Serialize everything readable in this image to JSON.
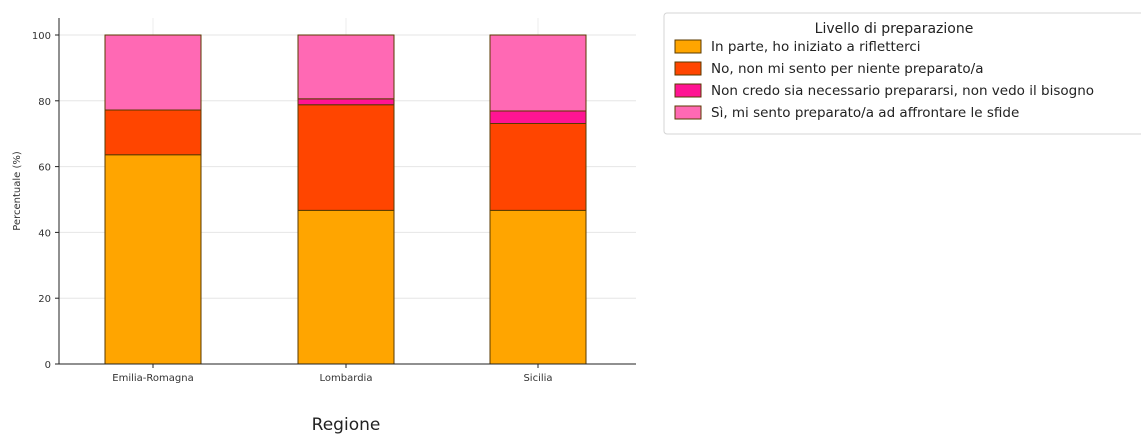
{
  "chart_data": {
    "type": "bar",
    "stacked": true,
    "categories": [
      "Emilia-Romagna",
      "Lombardia",
      "Sicilia"
    ],
    "series": [
      {
        "name": "In parte, ho iniziato a rifletterci",
        "color": "#FFA500",
        "values": [
          63.6,
          46.7,
          46.7
        ]
      },
      {
        "name": "No, non mi sento per niente preparato/a",
        "color": "#FF4500",
        "values": [
          13.6,
          32.1,
          26.4
        ]
      },
      {
        "name": "Non credo sia necessario prepararsi, non vedo il bisogno",
        "color": "#FF1493",
        "values": [
          0,
          1.8,
          3.8
        ]
      },
      {
        "name": "Sì, mi sento preparato/a ad affrontare le sfide",
        "color": "#FF69B4",
        "values": [
          22.8,
          19.4,
          23.1
        ]
      }
    ],
    "xlabel": "Regione",
    "ylabel": "Percentuale (%)",
    "ylim": [
      0,
      100
    ],
    "yticks": [
      0,
      20,
      40,
      60,
      80,
      100
    ],
    "grid": true,
    "legend": {
      "title": "Livello di preparazione",
      "placement": "outside-top-right"
    }
  }
}
